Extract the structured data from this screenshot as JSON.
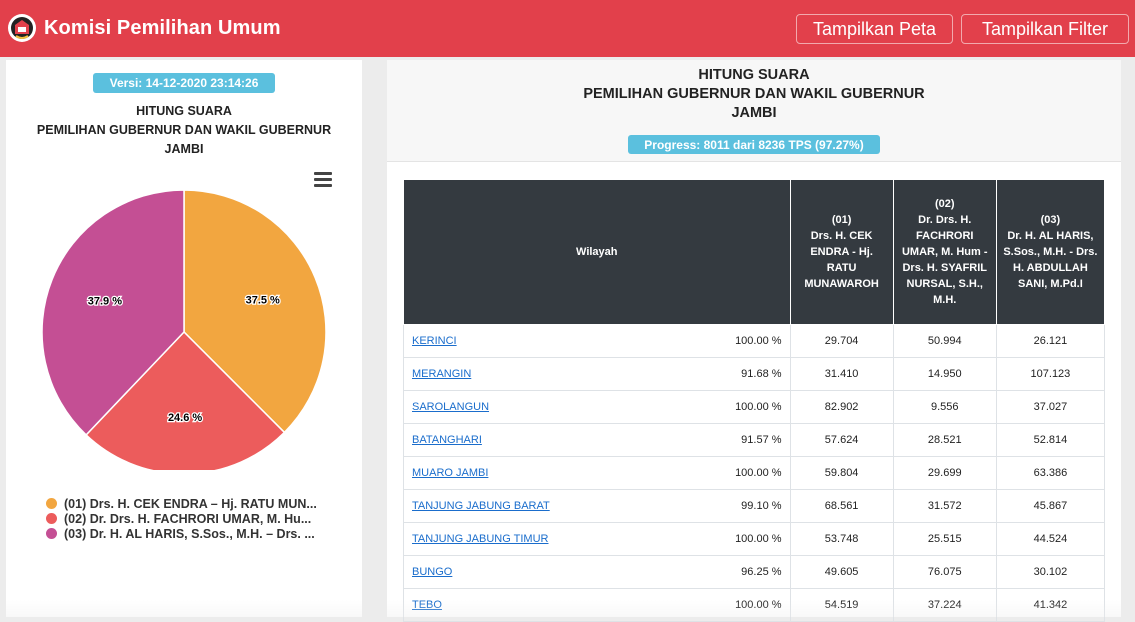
{
  "navbar": {
    "brand": "Komisi Pemilihan Umum",
    "logo_icon": "kpu-logo-icon",
    "btn_peta": "Tampilkan Peta",
    "btn_filter": "Tampilkan Filter",
    "bg_color": "#e2404b"
  },
  "left": {
    "version": "Versi: 14-12-2020 23:14:26",
    "title_line1": "HITUNG SUARA",
    "title_line2": "PEMILIHAN GUBERNUR DAN WAKIL GUBERNUR",
    "title_line3": "JAMBI",
    "menu_icon": "hamburger-menu-icon"
  },
  "chart_data": {
    "type": "pie",
    "slices": [
      {
        "label": "(01) Drs. H. CEK ENDRA – Hj. RATU MUN...",
        "value": 37.5,
        "display": "37.5 %",
        "color": "#f2a640"
      },
      {
        "label": "(02) Dr. Drs. H. FACHRORI UMAR, M. Hu...",
        "value": 24.6,
        "display": "24.6 %",
        "color": "#ec5c5c"
      },
      {
        "label": "(03) Dr. H. AL HARIS, S.Sos., M.H. – Drs. ...",
        "value": 37.9,
        "display": "37.9 %",
        "color": "#c44f94"
      }
    ]
  },
  "right": {
    "title_line1": "HITUNG SUARA",
    "title_line2": "PEMILIHAN GUBERNUR DAN WAKIL GUBERNUR",
    "title_line3": "JAMBI",
    "progress": "Progress: 8011 dari 8236 TPS (97.27%)"
  },
  "table": {
    "headers": {
      "wilayah": "Wilayah",
      "c1_no": "(01)",
      "c1_name": "Drs. H. CEK ENDRA - Hj. RATU MUNAWAROH",
      "c2_no": "(02)",
      "c2_name": "Dr. Drs. H. FACHRORI UMAR, M. Hum - Drs. H. SYAFRIL NURSAL, S.H., M.H.",
      "c3_no": "(03)",
      "c3_name": "Dr. H. AL HARIS, S.Sos., M.H. - Drs. H. ABDULLAH SANI, M.Pd.I"
    },
    "rows": [
      {
        "wilayah": "KERINCI",
        "pct": "100.00 %",
        "c1": "29.704",
        "c2": "50.994",
        "c3": "26.121"
      },
      {
        "wilayah": "MERANGIN",
        "pct": "91.68 %",
        "c1": "31.410",
        "c2": "14.950",
        "c3": "107.123"
      },
      {
        "wilayah": "SAROLANGUN",
        "pct": "100.00 %",
        "c1": "82.902",
        "c2": "9.556",
        "c3": "37.027"
      },
      {
        "wilayah": "BATANGHARI",
        "pct": "91.57 %",
        "c1": "57.624",
        "c2": "28.521",
        "c3": "52.814"
      },
      {
        "wilayah": "MUARO JAMBI",
        "pct": "100.00 %",
        "c1": "59.804",
        "c2": "29.699",
        "c3": "63.386"
      },
      {
        "wilayah": "TANJUNG JABUNG BARAT",
        "pct": "99.10 %",
        "c1": "68.561",
        "c2": "31.572",
        "c3": "45.867"
      },
      {
        "wilayah": "TANJUNG JABUNG TIMUR",
        "pct": "100.00 %",
        "c1": "53.748",
        "c2": "25.515",
        "c3": "44.524"
      },
      {
        "wilayah": "BUNGO",
        "pct": "96.25 %",
        "c1": "49.605",
        "c2": "76.075",
        "c3": "30.102"
      },
      {
        "wilayah": "TEBO",
        "pct": "100.00 %",
        "c1": "54.519",
        "c2": "37.224",
        "c3": "41.342"
      }
    ]
  }
}
